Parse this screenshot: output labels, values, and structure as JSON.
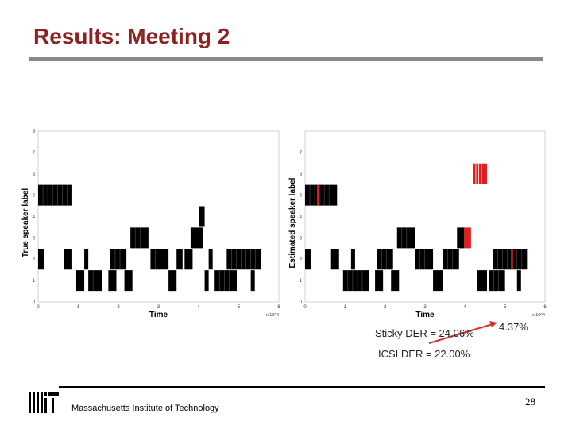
{
  "slide": {
    "title": "Results: Meeting 2",
    "sticky_der": "Sticky DER = 24.06%",
    "improved_der": "4.37%",
    "icsi_der": "ICSI DER = 22.00%",
    "footer": "Massachusetts Institute of Technology",
    "page_number": "28"
  },
  "colors": {
    "title": "#8b2323",
    "rule": "#8a8a8a",
    "highlight": "#e41e1e",
    "arrow": "#d9302f"
  },
  "icons": {
    "logo": "mit-logo-icon"
  },
  "chart_data": [
    {
      "type": "segment-raster",
      "xlabel": "Time",
      "ylabel": "True speaker label",
      "x_multiplier": "x 10^4",
      "xlim": [
        0,
        6
      ],
      "ylim": [
        0,
        8
      ],
      "xticks": [
        "0",
        "1",
        "2",
        "3",
        "4",
        "5",
        "6"
      ],
      "yticks": [
        "0",
        "1",
        "2",
        "3",
        "4",
        "5",
        "6",
        "7",
        "8"
      ],
      "segments": [
        {
          "label": 5,
          "start": 0.0,
          "end": 0.85,
          "color": "#000000"
        },
        {
          "label": 3,
          "start": 2.3,
          "end": 2.75,
          "color": "#000000"
        },
        {
          "label": 3,
          "start": 3.8,
          "end": 4.1,
          "color": "#000000"
        },
        {
          "label": 4,
          "start": 4.0,
          "end": 4.15,
          "color": "#000000"
        },
        {
          "label": 2,
          "start": 0.0,
          "end": 0.15,
          "color": "#000000"
        },
        {
          "label": 2,
          "start": 0.65,
          "end": 0.85,
          "color": "#000000"
        },
        {
          "label": 2,
          "start": 1.15,
          "end": 1.25,
          "color": "#000000"
        },
        {
          "label": 2,
          "start": 1.8,
          "end": 2.2,
          "color": "#000000"
        },
        {
          "label": 2,
          "start": 2.8,
          "end": 3.25,
          "color": "#000000"
        },
        {
          "label": 2,
          "start": 3.45,
          "end": 3.6,
          "color": "#000000"
        },
        {
          "label": 2,
          "start": 3.65,
          "end": 3.85,
          "color": "#000000"
        },
        {
          "label": 2,
          "start": 4.25,
          "end": 4.35,
          "color": "#000000"
        },
        {
          "label": 2,
          "start": 4.7,
          "end": 5.55,
          "color": "#000000"
        },
        {
          "label": 1,
          "start": 0.95,
          "end": 1.15,
          "color": "#000000"
        },
        {
          "label": 1,
          "start": 1.25,
          "end": 1.6,
          "color": "#000000"
        },
        {
          "label": 1,
          "start": 1.75,
          "end": 1.95,
          "color": "#000000"
        },
        {
          "label": 1,
          "start": 2.15,
          "end": 2.35,
          "color": "#000000"
        },
        {
          "label": 1,
          "start": 3.25,
          "end": 3.45,
          "color": "#000000"
        },
        {
          "label": 1,
          "start": 4.15,
          "end": 4.25,
          "color": "#000000"
        },
        {
          "label": 1,
          "start": 4.4,
          "end": 4.95,
          "color": "#000000"
        },
        {
          "label": 1,
          "start": 5.3,
          "end": 5.4,
          "color": "#000000"
        }
      ]
    },
    {
      "type": "segment-raster",
      "xlabel": "Time",
      "ylabel": "Estimated speaker label",
      "x_multiplier": "x 10^4",
      "xlim": [
        0,
        6
      ],
      "ylim": [
        0,
        8
      ],
      "xticks": [
        "0",
        "1",
        "2",
        "3",
        "4",
        "5",
        "6"
      ],
      "yticks": [
        "0",
        "1",
        "2",
        "3",
        "4",
        "5",
        "6",
        "7"
      ],
      "segments": [
        {
          "label": 5,
          "start": 0.0,
          "end": 0.8,
          "color": "#000000"
        },
        {
          "label": 5,
          "start": 0.3,
          "end": 0.35,
          "color": "#e41e1e"
        },
        {
          "label": 6,
          "start": 4.2,
          "end": 4.55,
          "color": "#e41e1e"
        },
        {
          "label": 3,
          "start": 2.3,
          "end": 2.75,
          "color": "#000000"
        },
        {
          "label": 3,
          "start": 3.8,
          "end": 3.98,
          "color": "#000000"
        },
        {
          "label": 3,
          "start": 3.98,
          "end": 4.15,
          "color": "#e41e1e"
        },
        {
          "label": 2,
          "start": 0.0,
          "end": 0.15,
          "color": "#000000"
        },
        {
          "label": 2,
          "start": 0.65,
          "end": 0.85,
          "color": "#000000"
        },
        {
          "label": 2,
          "start": 1.15,
          "end": 1.25,
          "color": "#000000"
        },
        {
          "label": 2,
          "start": 1.8,
          "end": 2.2,
          "color": "#000000"
        },
        {
          "label": 2,
          "start": 2.75,
          "end": 3.2,
          "color": "#000000"
        },
        {
          "label": 2,
          "start": 3.45,
          "end": 3.85,
          "color": "#000000"
        },
        {
          "label": 2,
          "start": 4.7,
          "end": 5.55,
          "color": "#000000"
        },
        {
          "label": 2,
          "start": 5.15,
          "end": 5.2,
          "color": "#e41e1e"
        },
        {
          "label": 1,
          "start": 0.95,
          "end": 1.6,
          "color": "#000000"
        },
        {
          "label": 1,
          "start": 1.75,
          "end": 1.95,
          "color": "#000000"
        },
        {
          "label": 1,
          "start": 2.15,
          "end": 2.35,
          "color": "#000000"
        },
        {
          "label": 1,
          "start": 3.2,
          "end": 3.45,
          "color": "#000000"
        },
        {
          "label": 1,
          "start": 4.3,
          "end": 4.55,
          "color": "#000000"
        },
        {
          "label": 1,
          "start": 4.6,
          "end": 5.0,
          "color": "#000000"
        },
        {
          "label": 1,
          "start": 5.3,
          "end": 5.4,
          "color": "#000000"
        }
      ]
    }
  ]
}
